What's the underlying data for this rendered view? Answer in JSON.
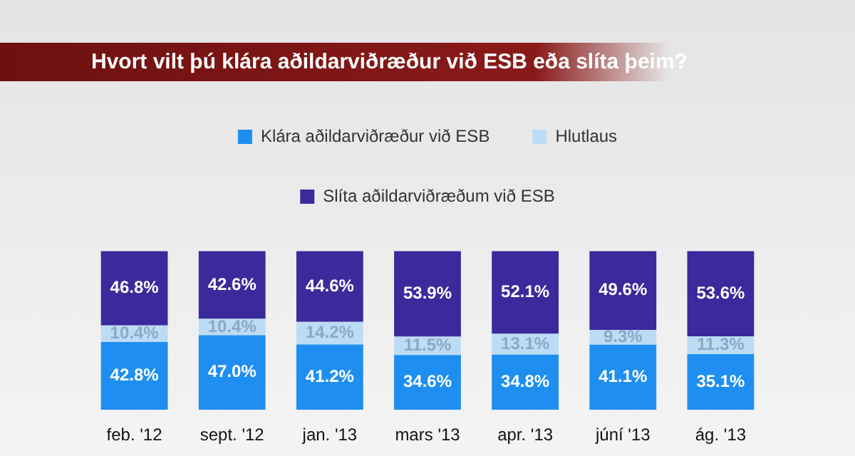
{
  "chart_data": {
    "type": "bar",
    "stacked": true,
    "title": "Hvort vilt þú klára aðildarviðræður við ESB eða slíta þeim?",
    "categories": [
      "feb. '12",
      "sept. '12",
      "jan. '13",
      "mars '13",
      "apr. '13",
      "júní '13",
      "ág. '13"
    ],
    "legend": "top",
    "tick_labels": "x",
    "grid": false,
    "series": [
      {
        "name": "Klára aðildarviðræður við ESB",
        "color": "#1e8ff0",
        "values": [
          42.8,
          47.0,
          41.2,
          34.6,
          34.8,
          41.1,
          35.1
        ],
        "value_labels": [
          "42.8%",
          "47.0%",
          "41.2%",
          "34.6%",
          "34.8%",
          "41.1%",
          "35.1%"
        ]
      },
      {
        "name": "Hlutlaus",
        "color": "#bcdcf5",
        "values": [
          10.4,
          10.4,
          14.2,
          11.5,
          13.1,
          9.3,
          11.3
        ],
        "value_labels": [
          "10.4%",
          "10.4%",
          "14.2%",
          "11.5%",
          "13.1%",
          "9.3%",
          "11.3%"
        ]
      },
      {
        "name": "Slíta aðildarviðræðum við ESB",
        "color": "#3b2a9c",
        "values": [
          46.8,
          42.6,
          44.6,
          53.9,
          52.1,
          49.6,
          53.6
        ],
        "value_labels": [
          "46.8%",
          "42.6%",
          "44.6%",
          "53.9%",
          "52.1%",
          "49.6%",
          "53.6%"
        ]
      }
    ]
  }
}
